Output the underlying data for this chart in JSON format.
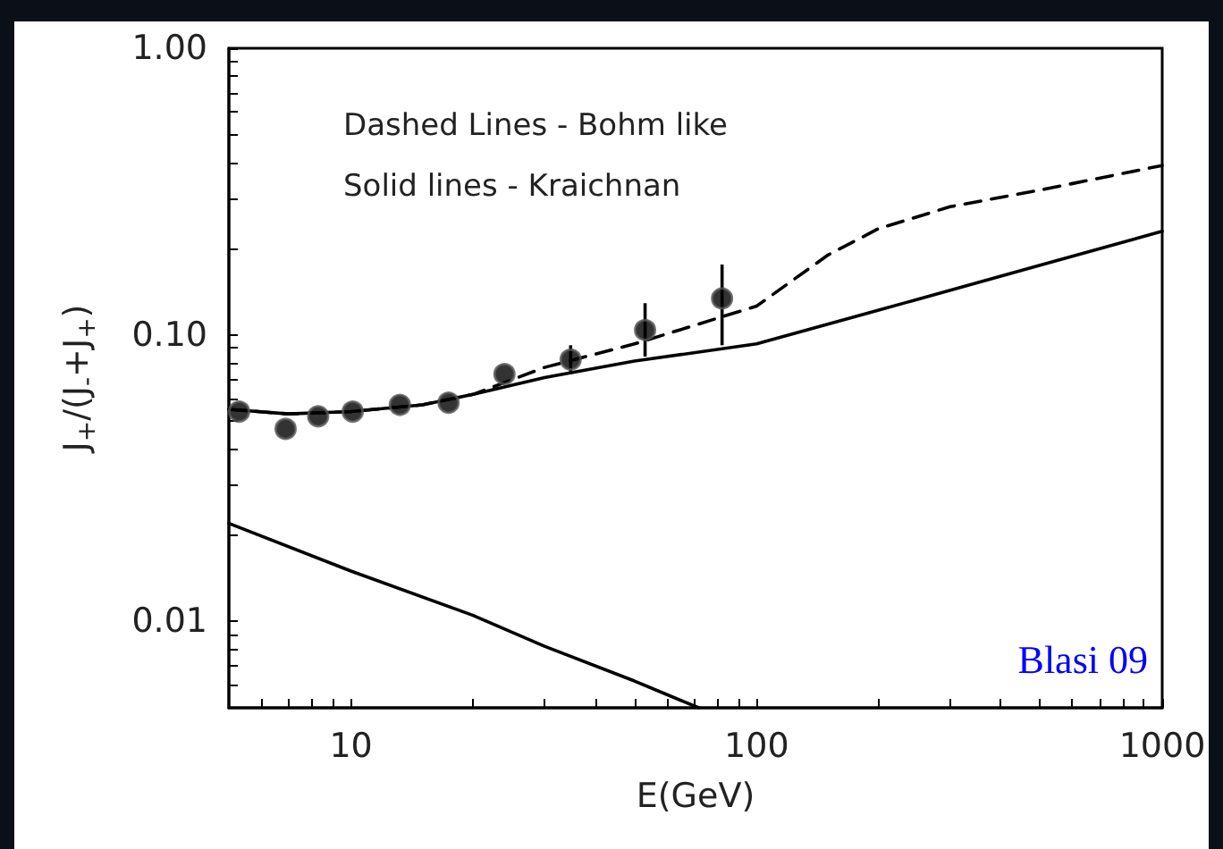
{
  "chart_data": {
    "type": "line",
    "xlabel": "E(GeV)",
    "ylabel": "J$_{+}$/(J$_{-}$+J$_{+}$)",
    "annotations": [
      "Dashed Lines - Bohm like",
      "Solid lines - Kraichnan",
      "Blasi 09"
    ],
    "log": "xy",
    "grid": false,
    "xlim": [
      5,
      1000
    ],
    "ylim": [
      0.005,
      1
    ],
    "xticks": [
      {
        "value": 6,
        "label": null
      },
      {
        "value": 7,
        "label": null
      },
      {
        "value": 8,
        "label": null
      },
      {
        "value": 9,
        "label": null
      },
      10,
      {
        "value": 20,
        "label": null
      },
      {
        "value": 30,
        "label": null
      },
      {
        "value": 40,
        "label": null
      },
      {
        "value": 50,
        "label": null
      },
      {
        "value": 60,
        "label": null
      },
      {
        "value": 70,
        "label": null
      },
      {
        "value": 80,
        "label": null
      },
      {
        "value": 90,
        "label": null
      },
      100,
      {
        "value": 200,
        "label": null
      },
      {
        "value": 300,
        "label": null
      },
      {
        "value": 400,
        "label": null
      },
      {
        "value": 500,
        "label": null
      },
      {
        "value": 600,
        "label": null
      },
      {
        "value": 700,
        "label": null
      },
      {
        "value": 800,
        "label": null
      },
      {
        "value": 900,
        "label": null
      },
      1000
    ],
    "yticks": [
      {
        "value": 0.006,
        "label": null
      },
      {
        "value": 0.007,
        "label": null
      },
      {
        "value": 0.008,
        "label": null
      },
      {
        "value": 0.009,
        "label": null
      },
      {
        "value": 0.01,
        "label": "0.01"
      },
      {
        "value": 0.02,
        "label": null
      },
      {
        "value": 0.03,
        "label": null
      },
      {
        "value": 0.04,
        "label": null
      },
      {
        "value": 0.05,
        "label": null
      },
      {
        "value": 0.06,
        "label": null
      },
      {
        "value": 0.07,
        "label": null
      },
      {
        "value": 0.08,
        "label": null
      },
      {
        "value": 0.09,
        "label": null
      },
      {
        "value": 0.1,
        "label": "0.10"
      },
      {
        "value": 0.2,
        "label": null
      },
      {
        "value": 0.3,
        "label": null
      },
      {
        "value": 0.4,
        "label": null
      },
      {
        "value": 0.5,
        "label": null
      },
      {
        "value": 0.6,
        "label": null
      },
      {
        "value": 0.7,
        "label": null
      },
      {
        "value": 0.8,
        "label": null
      },
      {
        "value": 0.9,
        "label": null
      },
      {
        "value": 1,
        "label": "1.00"
      }
    ],
    "series": [
      {
        "type": "scatter",
        "color": "#000000",
        "marker": "circle",
        "x": [
          5.3,
          6.9,
          8.3,
          10.1,
          13.2,
          17.4,
          23.9,
          34.8,
          53.1,
          82.2
        ],
        "values": [
          0.054,
          0.047,
          0.052,
          0.054,
          0.057,
          0.058,
          0.073,
          0.082,
          0.104,
          0.134
        ],
        "errors": [
          null,
          null,
          null,
          null,
          null,
          null,
          null,
          [
            0.073,
            0.092
          ],
          [
            0.084,
            0.129
          ],
          [
            0.092,
            0.176
          ]
        ]
      },
      {
        "color": "#000000",
        "line_style": "dashed",
        "x": [
          5,
          7,
          10,
          15,
          20,
          30,
          50,
          100,
          150,
          200,
          300,
          500,
          1000
        ],
        "values": [
          0.055,
          0.053,
          0.054,
          0.057,
          0.062,
          0.077,
          0.093,
          0.126,
          0.19,
          0.235,
          0.28,
          0.32,
          0.39
        ]
      },
      {
        "color": "#000000",
        "line_style": "solid",
        "x": [
          5,
          7,
          10,
          15,
          20,
          30,
          50,
          100,
          200,
          500,
          1000
        ],
        "values": [
          0.055,
          0.053,
          0.054,
          0.057,
          0.062,
          0.071,
          0.081,
          0.093,
          0.122,
          0.175,
          0.23
        ]
      },
      {
        "color": "#000000",
        "line_style": "solid",
        "x": [
          5,
          10,
          20,
          30,
          50,
          72
        ],
        "values": [
          0.022,
          0.015,
          0.0105,
          0.0082,
          0.0062,
          0.005
        ]
      }
    ]
  }
}
